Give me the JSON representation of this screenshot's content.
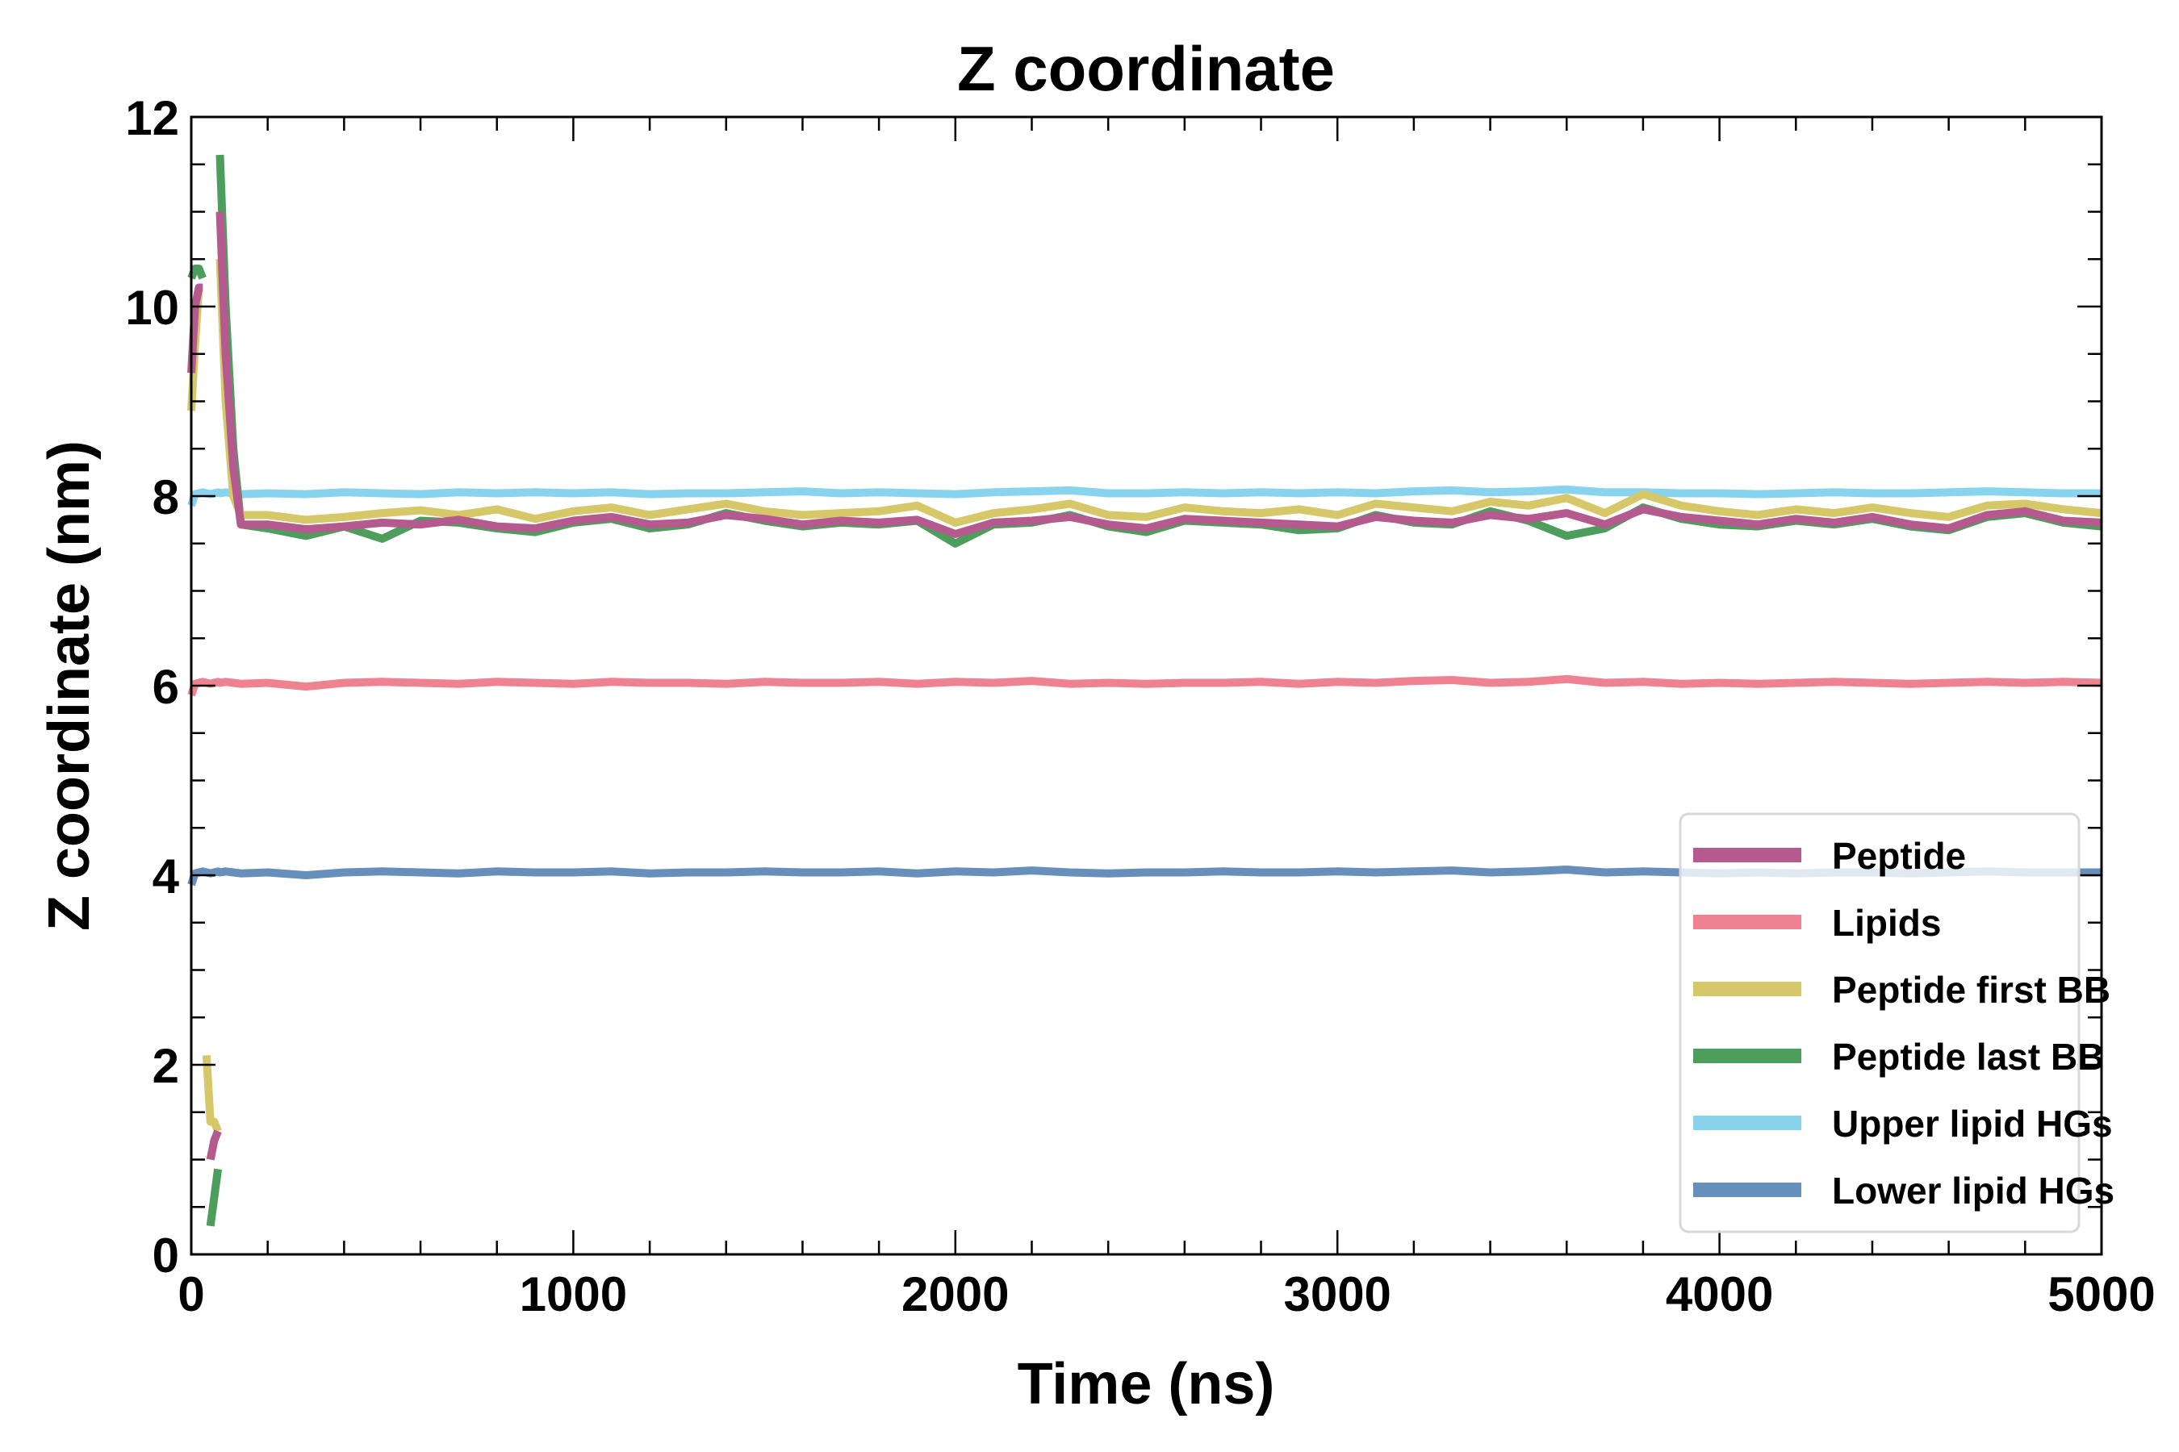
{
  "chart_data": {
    "type": "line",
    "title": "Z coordinate",
    "xlabel": "Time (ns)",
    "ylabel": "Z coordinate (nm)",
    "xlim": [
      0,
      5000
    ],
    "ylim": [
      0,
      12
    ],
    "xticks": [
      0,
      1000,
      2000,
      3000,
      4000,
      5000
    ],
    "yticks": [
      0,
      2,
      4,
      6,
      8,
      10,
      12
    ],
    "grid": false,
    "legend_position": "lower-right",
    "x": [
      0,
      10,
      20,
      30,
      40,
      50,
      60,
      70,
      75,
      90,
      110,
      130,
      200,
      300,
      400,
      500,
      600,
      700,
      800,
      900,
      1000,
      1100,
      1200,
      1300,
      1400,
      1500,
      1600,
      1700,
      1800,
      1900,
      2000,
      2100,
      2200,
      2300,
      2400,
      2500,
      2600,
      2700,
      2800,
      2900,
      3000,
      3100,
      3200,
      3300,
      3400,
      3500,
      3600,
      3700,
      3800,
      3900,
      4000,
      4100,
      4200,
      4300,
      4400,
      4500,
      4600,
      4700,
      4800,
      4900,
      5000
    ],
    "series": [
      {
        "name": "Lower lipid HGs",
        "color": "#6690bb",
        "values": [
          3.9,
          4.02,
          4.03,
          4.04,
          4.03,
          4.02,
          4.03,
          4.04,
          4.03,
          4.04,
          4.03,
          4.02,
          4.03,
          4.0,
          4.03,
          4.04,
          4.03,
          4.02,
          4.04,
          4.03,
          4.03,
          4.04,
          4.02,
          4.03,
          4.03,
          4.04,
          4.03,
          4.03,
          4.04,
          4.02,
          4.04,
          4.03,
          4.05,
          4.03,
          4.02,
          4.03,
          4.03,
          4.04,
          4.03,
          4.03,
          4.04,
          4.03,
          4.04,
          4.05,
          4.03,
          4.04,
          4.06,
          4.03,
          4.04,
          4.03,
          4.02,
          4.03,
          4.02,
          4.03,
          4.03,
          4.02,
          4.03,
          4.04,
          4.03,
          4.03,
          4.03
        ]
      },
      {
        "name": "Lipids",
        "color": "#ee8290",
        "values": [
          5.9,
          6.02,
          6.03,
          6.04,
          6.03,
          6.02,
          6.03,
          6.04,
          6.03,
          6.04,
          6.03,
          6.02,
          6.03,
          5.99,
          6.03,
          6.04,
          6.03,
          6.02,
          6.04,
          6.03,
          6.02,
          6.04,
          6.03,
          6.03,
          6.02,
          6.04,
          6.03,
          6.03,
          6.04,
          6.02,
          6.04,
          6.03,
          6.05,
          6.02,
          6.03,
          6.02,
          6.03,
          6.03,
          6.04,
          6.02,
          6.04,
          6.03,
          6.05,
          6.06,
          6.03,
          6.04,
          6.07,
          6.03,
          6.04,
          6.02,
          6.03,
          6.02,
          6.03,
          6.04,
          6.03,
          6.02,
          6.03,
          6.04,
          6.03,
          6.04,
          6.03
        ]
      },
      {
        "name": "Upper lipid HGs",
        "color": "#88d4ee",
        "values": [
          7.9,
          8.02,
          8.03,
          8.04,
          8.03,
          8.02,
          8.03,
          8.04,
          8.03,
          8.04,
          8.03,
          8.02,
          8.03,
          8.02,
          8.04,
          8.03,
          8.02,
          8.04,
          8.03,
          8.04,
          8.03,
          8.04,
          8.02,
          8.03,
          8.03,
          8.04,
          8.05,
          8.03,
          8.04,
          8.03,
          8.02,
          8.04,
          8.05,
          8.06,
          8.03,
          8.03,
          8.04,
          8.03,
          8.04,
          8.03,
          8.04,
          8.03,
          8.05,
          8.06,
          8.04,
          8.05,
          8.07,
          8.04,
          8.04,
          8.03,
          8.03,
          8.02,
          8.03,
          8.04,
          8.03,
          8.03,
          8.04,
          8.05,
          8.04,
          8.03,
          8.03
        ]
      },
      {
        "name": "Peptide last BB",
        "color": "#4d9e5c",
        "values": [
          10.3,
          10.4,
          10.4,
          10.3,
          null,
          0.3,
          0.6,
          0.9,
          11.6,
          10.0,
          8.5,
          7.7,
          7.66,
          7.58,
          7.68,
          7.55,
          7.74,
          7.72,
          7.66,
          7.62,
          7.72,
          7.76,
          7.66,
          7.7,
          7.82,
          7.74,
          7.68,
          7.72,
          7.7,
          7.74,
          7.5,
          7.7,
          7.72,
          7.8,
          7.68,
          7.62,
          7.74,
          7.72,
          7.7,
          7.64,
          7.66,
          7.8,
          7.72,
          7.7,
          7.84,
          7.74,
          7.58,
          7.66,
          7.88,
          7.76,
          7.7,
          7.68,
          7.74,
          7.7,
          7.76,
          7.68,
          7.64,
          7.78,
          7.82,
          7.72,
          7.68
        ]
      },
      {
        "name": "Peptide first BB",
        "color": "#d6c868",
        "values": [
          8.9,
          9.6,
          10.2,
          10.2,
          2.1,
          1.4,
          1.4,
          1.3,
          10.5,
          9.0,
          8.0,
          7.8,
          7.8,
          7.75,
          7.78,
          7.82,
          7.85,
          7.8,
          7.86,
          7.76,
          7.84,
          7.88,
          7.8,
          7.86,
          7.92,
          7.84,
          7.8,
          7.82,
          7.84,
          7.9,
          7.72,
          7.82,
          7.86,
          7.92,
          7.8,
          7.78,
          7.88,
          7.84,
          7.82,
          7.86,
          7.8,
          7.92,
          7.88,
          7.84,
          7.94,
          7.9,
          7.98,
          7.82,
          8.02,
          7.9,
          7.84,
          7.8,
          7.86,
          7.82,
          7.88,
          7.82,
          7.78,
          7.9,
          7.92,
          7.86,
          7.82
        ]
      },
      {
        "name": "Peptide",
        "color": "#b55a8e",
        "values": [
          9.3,
          10.0,
          10.2,
          10.2,
          null,
          1.0,
          1.2,
          1.3,
          11.0,
          9.5,
          8.3,
          7.7,
          7.7,
          7.65,
          7.68,
          7.72,
          7.7,
          7.75,
          7.68,
          7.66,
          7.74,
          7.78,
          7.7,
          7.72,
          7.8,
          7.76,
          7.7,
          7.74,
          7.72,
          7.75,
          7.6,
          7.72,
          7.74,
          7.78,
          7.7,
          7.66,
          7.76,
          7.74,
          7.72,
          7.7,
          7.68,
          7.78,
          7.74,
          7.72,
          7.8,
          7.76,
          7.82,
          7.7,
          7.86,
          7.78,
          7.74,
          7.7,
          7.76,
          7.72,
          7.78,
          7.7,
          7.66,
          7.8,
          7.84,
          7.74,
          7.72
        ]
      }
    ],
    "legend": [
      "Peptide",
      "Lipids",
      "Peptide first BB",
      "Peptide last BB",
      "Upper lipid HGs",
      "Lower lipid HGs"
    ]
  }
}
